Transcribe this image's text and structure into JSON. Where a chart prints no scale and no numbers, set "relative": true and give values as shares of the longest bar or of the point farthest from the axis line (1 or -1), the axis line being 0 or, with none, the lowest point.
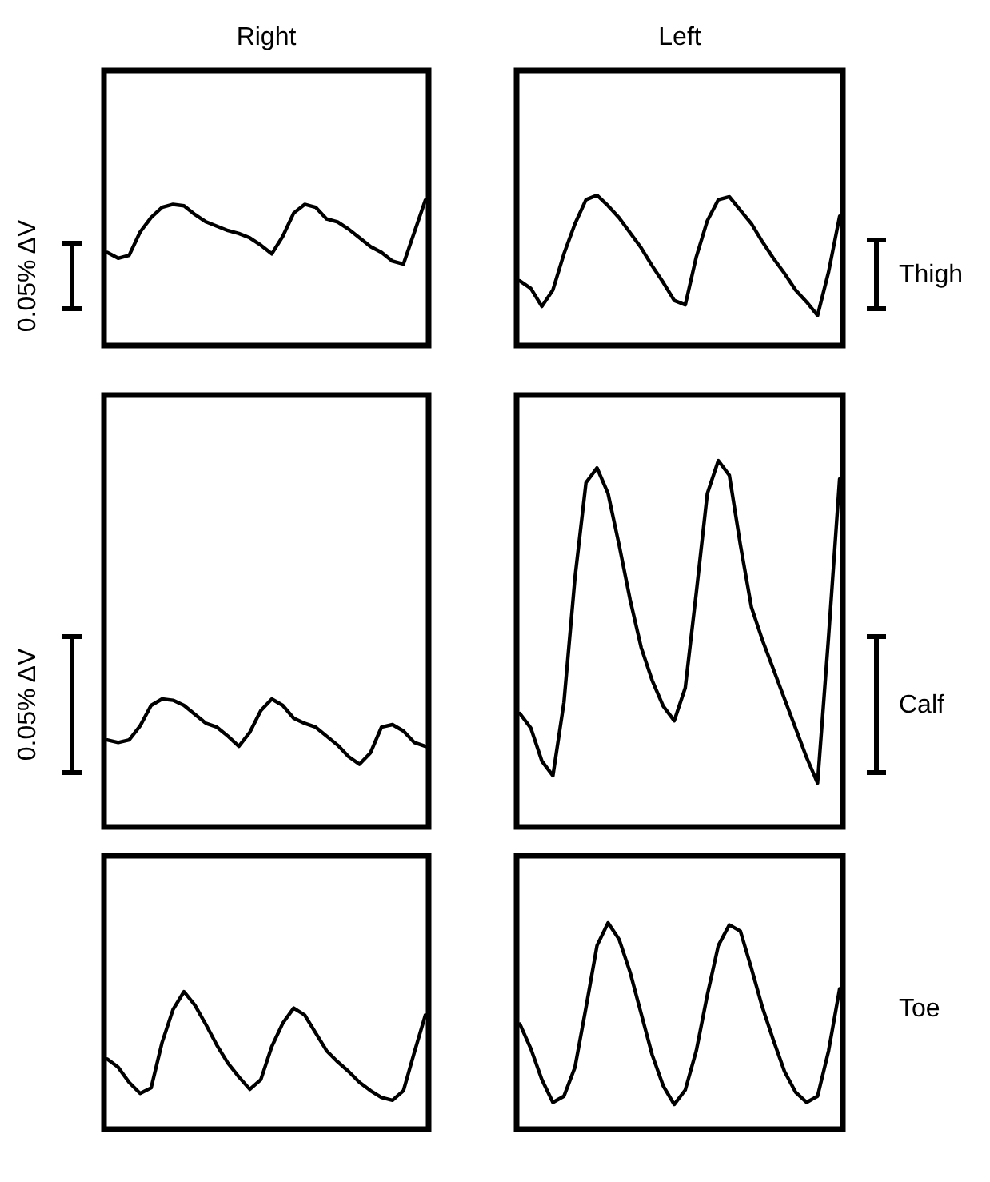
{
  "chart_data": [
    {
      "type": "line",
      "title": "Right",
      "ylabel": "0.05% ΔV",
      "relative": true,
      "categories": [
        null,
        null,
        null,
        null,
        null,
        null,
        null,
        null,
        null,
        null,
        null,
        null,
        null,
        null,
        null,
        null,
        null,
        null,
        null,
        null,
        null,
        null,
        null,
        null,
        null,
        null,
        null,
        null,
        null,
        null
      ],
      "series": [
        {
          "color": "#000000",
          "values": [
            0.64,
            0.6,
            0.62,
            0.78,
            0.88,
            0.95,
            0.97,
            0.96,
            0.9,
            0.85,
            0.82,
            0.79,
            0.77,
            0.74,
            0.69,
            0.63,
            0.75,
            0.91,
            0.97,
            0.95,
            0.87,
            0.85,
            0.8,
            0.74,
            0.68,
            0.64,
            0.58,
            0.56,
            0.78,
            1
          ]
        }
      ]
    },
    {
      "type": "line",
      "title": "Left",
      "y2label": "Thigh",
      "relative": true,
      "categories": [
        null,
        null,
        null,
        null,
        null,
        null,
        null,
        null,
        null,
        null,
        null,
        null,
        null,
        null,
        null,
        null,
        null,
        null,
        null,
        null,
        null,
        null,
        null,
        null,
        null,
        null,
        null,
        null,
        null,
        null
      ],
      "series": [
        {
          "color": "#000000",
          "values": [
            0.43,
            0.38,
            0.26,
            0.37,
            0.61,
            0.81,
            0.97,
            1,
            0.93,
            0.85,
            0.75,
            0.65,
            0.53,
            0.42,
            0.3,
            0.27,
            0.59,
            0.83,
            0.97,
            0.99,
            0.9,
            0.81,
            0.69,
            0.58,
            0.48,
            0.37,
            0.29,
            0.2,
            0.49,
            0.86
          ]
        }
      ]
    },
    {
      "type": "line",
      "ylabel": "0.05% ΔV",
      "relative": true,
      "categories": [
        null,
        null,
        null,
        null,
        null,
        null,
        null,
        null,
        null,
        null,
        null,
        null,
        null,
        null,
        null,
        null,
        null,
        null,
        null,
        null,
        null,
        null,
        null,
        null,
        null,
        null,
        null,
        null,
        null,
        null
      ],
      "series": [
        {
          "color": "#000000",
          "values": [
            0.68,
            0.66,
            0.68,
            0.79,
            0.95,
            1,
            0.99,
            0.95,
            0.88,
            0.81,
            0.78,
            0.71,
            0.63,
            0.74,
            0.91,
            1,
            0.95,
            0.85,
            0.81,
            0.78,
            0.71,
            0.64,
            0.55,
            0.49,
            0.58,
            0.78,
            0.8,
            0.75,
            0.66,
            0.63
          ]
        }
      ]
    },
    {
      "type": "line",
      "y2label": "Calf",
      "relative": true,
      "categories": [
        null,
        null,
        null,
        null,
        null,
        null,
        null,
        null,
        null,
        null,
        null,
        null,
        null,
        null,
        null,
        null,
        null,
        null,
        null,
        null,
        null,
        null,
        null,
        null,
        null,
        null,
        null,
        null,
        null,
        null
      ],
      "series": [
        {
          "color": "#000000",
          "values": [
            0.31,
            0.27,
            0.18,
            0.14,
            0.34,
            0.68,
            0.94,
            0.98,
            0.91,
            0.77,
            0.62,
            0.49,
            0.4,
            0.33,
            0.29,
            0.38,
            0.64,
            0.91,
            1,
            0.96,
            0.77,
            0.6,
            0.51,
            0.43,
            0.35,
            0.27,
            0.19,
            0.12,
            0.52,
            0.95
          ]
        }
      ]
    },
    {
      "type": "line",
      "relative": true,
      "categories": [
        null,
        null,
        null,
        null,
        null,
        null,
        null,
        null,
        null,
        null,
        null,
        null,
        null,
        null,
        null,
        null,
        null,
        null,
        null,
        null,
        null,
        null,
        null,
        null,
        null,
        null,
        null,
        null,
        null,
        null
      ],
      "series": [
        {
          "color": "#000000",
          "values": [
            0.51,
            0.45,
            0.34,
            0.26,
            0.3,
            0.63,
            0.87,
            1,
            0.9,
            0.76,
            0.61,
            0.48,
            0.38,
            0.29,
            0.36,
            0.6,
            0.77,
            0.88,
            0.83,
            0.7,
            0.57,
            0.49,
            0.42,
            0.34,
            0.28,
            0.23,
            0.21,
            0.28,
            0.56,
            0.83
          ]
        }
      ]
    },
    {
      "type": "line",
      "y2label": "Toe",
      "relative": true,
      "categories": [
        null,
        null,
        null,
        null,
        null,
        null,
        null,
        null,
        null,
        null,
        null,
        null,
        null,
        null,
        null,
        null,
        null,
        null,
        null,
        null,
        null,
        null,
        null,
        null,
        null,
        null,
        null,
        null,
        null,
        null
      ],
      "series": [
        {
          "color": "#000000",
          "values": [
            0.51,
            0.39,
            0.24,
            0.13,
            0.16,
            0.3,
            0.59,
            0.89,
            1,
            0.92,
            0.76,
            0.56,
            0.36,
            0.21,
            0.12,
            0.19,
            0.38,
            0.65,
            0.89,
            0.99,
            0.96,
            0.78,
            0.59,
            0.43,
            0.28,
            0.18,
            0.13,
            0.16,
            0.38,
            0.68
          ]
        }
      ]
    }
  ]
}
